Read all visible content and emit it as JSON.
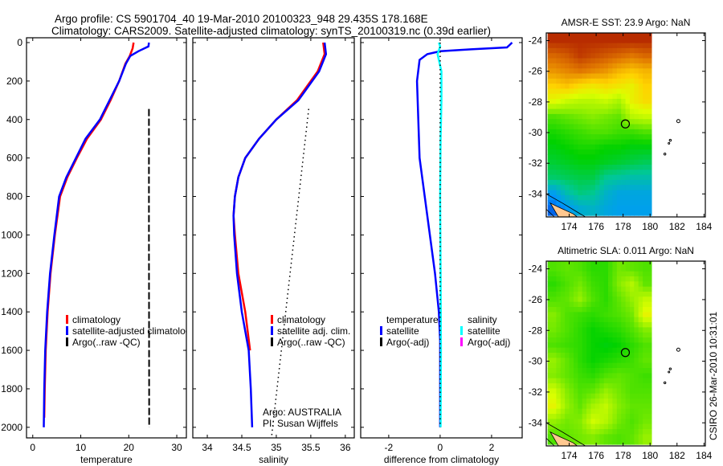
{
  "title": {
    "line1": "Argo profile: CS 5901704_40 19-Mar-2010 20100323_948 29.435S 178.168E",
    "line2": "Climatology: CARS2009. Satellite-adjusted climatology: synTS_20100319.nc (0.39d earlier)"
  },
  "footer_stamp": "CSIRO 26-Mar-2010 10:31:01",
  "colors": {
    "climatology": "#ff0000",
    "satellite": "#0000ff",
    "argo": "#000000",
    "sal_satellite": "#00ffff",
    "sal_argo": "#ff00ff"
  },
  "chart_data": [
    {
      "type": "line",
      "id": "temperature",
      "xlabel": "temperature",
      "ylabel": "",
      "xlim": [
        -1.3,
        32
      ],
      "ylim": [
        2055,
        -25
      ],
      "xticks": [
        "0",
        "10",
        "20",
        "30"
      ],
      "xtick_values": [
        0,
        10,
        20,
        30
      ],
      "yticks": [
        "0",
        "200",
        "400",
        "600",
        "800",
        "1000",
        "1200",
        "1400",
        "1600",
        "1800",
        "2000"
      ],
      "ytick_values": [
        0,
        200,
        400,
        600,
        800,
        1000,
        1200,
        1400,
        1600,
        1800,
        2000
      ],
      "legend": [
        "climatology",
        "satellite-adjusted climatology",
        "Argo(..raw -QC)"
      ],
      "series": [
        {
          "name": "climatology",
          "color": "#ff0000",
          "style": "solid",
          "points": [
            [
              21,
              0
            ],
            [
              20.8,
              30
            ],
            [
              20.2,
              70
            ],
            [
              19.3,
              110
            ],
            [
              18,
              200
            ],
            [
              16.2,
              300
            ],
            [
              14.2,
              400
            ],
            [
              11.3,
              500
            ],
            [
              9.2,
              600
            ],
            [
              7.2,
              700
            ],
            [
              5.7,
              800
            ],
            [
              4.6,
              1000
            ],
            [
              3.7,
              1200
            ],
            [
              3.1,
              1400
            ],
            [
              2.7,
              1600
            ],
            [
              2.5,
              1800
            ],
            [
              2.4,
              1950
            ]
          ]
        },
        {
          "name": "satellite-adjusted climatology",
          "color": "#0000ff",
          "style": "solid",
          "points": [
            [
              24.2,
              0
            ],
            [
              24.1,
              20
            ],
            [
              22,
              45
            ],
            [
              20.3,
              70
            ],
            [
              19.4,
              110
            ],
            [
              18,
              200
            ],
            [
              16,
              300
            ],
            [
              14,
              400
            ],
            [
              11,
              500
            ],
            [
              9,
              600
            ],
            [
              7,
              700
            ],
            [
              5.5,
              800
            ],
            [
              4.5,
              1000
            ],
            [
              3.6,
              1200
            ],
            [
              3,
              1400
            ],
            [
              2.6,
              1600
            ],
            [
              2.4,
              1800
            ],
            [
              2.3,
              2000
            ]
          ]
        },
        {
          "name": "Argo(..raw -QC)",
          "color": "#000000",
          "style": "dashed",
          "points": [
            [
              24.2,
              345
            ],
            [
              24.2,
              1000
            ],
            [
              24.25,
              2000
            ]
          ]
        }
      ]
    },
    {
      "type": "line",
      "id": "salinity",
      "xlabel": "salinity",
      "xlim": [
        33.79,
        36.13
      ],
      "ylim": [
        2055,
        -25
      ],
      "xticks": [
        "34",
        "34.5",
        "35",
        "35.5",
        "36"
      ],
      "xtick_values": [
        34,
        34.5,
        35,
        35.5,
        36
      ],
      "legend": [
        "climatology",
        "satellite adj. clim.",
        "Argo(..raw -QC)"
      ],
      "annotation": [
        "Argo: AUSTRALIA",
        "PI: Susan Wijffels"
      ],
      "series": [
        {
          "name": "climatology",
          "color": "#ff0000",
          "style": "solid",
          "points": [
            [
              35.68,
              0
            ],
            [
              35.7,
              60
            ],
            [
              35.6,
              150
            ],
            [
              35.3,
              300
            ],
            [
              35.0,
              400
            ],
            [
              34.75,
              500
            ],
            [
              34.55,
              600
            ],
            [
              34.45,
              700
            ],
            [
              34.4,
              800
            ],
            [
              34.38,
              900
            ],
            [
              34.4,
              1000
            ],
            [
              34.45,
              1200
            ],
            [
              34.55,
              1400
            ],
            [
              34.62,
              1600
            ]
          ]
        },
        {
          "name": "satellite adj. clim.",
          "color": "#0000ff",
          "style": "solid",
          "points": [
            [
              35.7,
              0
            ],
            [
              35.72,
              60
            ],
            [
              35.62,
              150
            ],
            [
              35.32,
              300
            ],
            [
              35.0,
              400
            ],
            [
              34.75,
              500
            ],
            [
              34.55,
              600
            ],
            [
              34.45,
              700
            ],
            [
              34.4,
              800
            ],
            [
              34.38,
              900
            ],
            [
              34.39,
              1000
            ],
            [
              34.43,
              1200
            ],
            [
              34.5,
              1400
            ],
            [
              34.6,
              1600
            ],
            [
              34.63,
              1800
            ],
            [
              34.65,
              2000
            ]
          ]
        },
        {
          "name": "Argo(..raw -QC)",
          "color": "#000000",
          "style": "dotted",
          "points": [
            [
              35.47,
              345
            ],
            [
              34.93,
              2055
            ]
          ]
        }
      ]
    },
    {
      "type": "line",
      "id": "difference",
      "xlabel": "difference from climatology",
      "xlim": [
        -3.09,
        3.19
      ],
      "ylim": [
        2055,
        -25
      ],
      "xticks": [
        "-2",
        "0",
        "2"
      ],
      "xtick_values": [
        -2,
        0,
        2
      ],
      "legend_temperature": {
        "title": "temperature",
        "items": [
          "satellite",
          "Argo(-adj)"
        ]
      },
      "legend_salinity": {
        "title": "salinity",
        "items": [
          "satellite",
          "Argo(-adj)"
        ]
      },
      "series": [
        {
          "name": "temperature satellite",
          "color": "#0000ff",
          "style": "solid",
          "points": [
            [
              2.8,
              0
            ],
            [
              2.6,
              25
            ],
            [
              1.2,
              35
            ],
            [
              0,
              45
            ],
            [
              -0.5,
              60
            ],
            [
              -0.8,
              90
            ],
            [
              -0.9,
              200
            ],
            [
              -0.85,
              400
            ],
            [
              -0.8,
              600
            ],
            [
              -0.6,
              800
            ],
            [
              -0.4,
              1000
            ],
            [
              -0.2,
              1200
            ],
            [
              -0.05,
              1400
            ],
            [
              0,
              1550
            ],
            [
              0,
              2000
            ]
          ]
        },
        {
          "name": "salinity satellite",
          "color": "#00ffff",
          "style": "solid",
          "points": [
            [
              -0.05,
              0
            ],
            [
              0,
              20
            ],
            [
              -0.1,
              60
            ],
            [
              0.05,
              150
            ],
            [
              0.05,
              300
            ],
            [
              0.02,
              500
            ],
            [
              0,
              800
            ],
            [
              0.02,
              1200
            ],
            [
              0.03,
              1600
            ],
            [
              0.02,
              2000
            ]
          ]
        },
        {
          "name": "zero reference",
          "color": "#000000",
          "style": "dotted",
          "points": [
            [
              0,
              0
            ],
            [
              0,
              2000
            ]
          ]
        }
      ]
    },
    {
      "type": "heatmap",
      "id": "sst_map",
      "title": "AMSR-E SST: 23.9 Argo: NaN",
      "xlim": [
        172.3,
        184.1
      ],
      "ylim": [
        -35.5,
        -23.5
      ],
      "xticks": [
        "174",
        "176",
        "178",
        "180",
        "182",
        "184"
      ],
      "xtick_values": [
        174,
        176,
        178,
        180,
        182,
        184
      ],
      "yticks": [
        "-24",
        "-26",
        "-28",
        "-30",
        "-32",
        "-34"
      ],
      "ytick_values": [
        -24,
        -26,
        -28,
        -30,
        -32,
        -34
      ],
      "data_lon": [
        172.4,
        180.1
      ],
      "data_lat": [
        -23.5,
        -35.4
      ],
      "crange": [
        20.5,
        26.3
      ],
      "argo_position": [
        178.168,
        -29.435
      ],
      "grid": [
        [
          26,
          26,
          26,
          26,
          26,
          26,
          26,
          26
        ],
        [
          25.6,
          25.7,
          25.9,
          25.8,
          25.7,
          25.6,
          25.5,
          25.6
        ],
        [
          25.3,
          25.4,
          25.5,
          25.4,
          25.3,
          25.1,
          25,
          25.1
        ],
        [
          24.9,
          25,
          24.8,
          24.7,
          24.8,
          24.7,
          24.6,
          24.9
        ],
        [
          24.5,
          24.3,
          24.2,
          24.2,
          24.3,
          24.1,
          24.6,
          24.8
        ],
        [
          23.6,
          23.7,
          23.8,
          23.9,
          23.8,
          23.7,
          24.2,
          24.3
        ],
        [
          23.3,
          23.4,
          23.5,
          23.6,
          23.6,
          23.5,
          23.5,
          23.6
        ],
        [
          23.1,
          23.2,
          23.3,
          23.3,
          23.2,
          23.2,
          23.1,
          23.1
        ],
        [
          22.9,
          23,
          23.1,
          23.1,
          23,
          22.9,
          22.8,
          22.7
        ],
        [
          22.6,
          22.7,
          22.8,
          22.8,
          22.4,
          22.3,
          22.2,
          22.2
        ],
        [
          21.7,
          22.2,
          22.5,
          22.4,
          22.0,
          21.8,
          21.8,
          21.8
        ],
        [
          21.2,
          21.6,
          21.9,
          22.0,
          21.8,
          21.7,
          21.7,
          21.7
        ]
      ]
    },
    {
      "type": "heatmap",
      "id": "sla_map",
      "title": "Altimetric SLA: 0.011 Argo: NaN",
      "xlim": [
        172.3,
        184.1
      ],
      "ylim": [
        -35.5,
        -23.5
      ],
      "xticks": [
        "174",
        "176",
        "178",
        "180",
        "182",
        "184"
      ],
      "xtick_values": [
        174,
        176,
        178,
        180,
        182,
        184
      ],
      "yticks": [
        "-24",
        "-26",
        "-28",
        "-30",
        "-32",
        "-34"
      ],
      "ytick_values": [
        -24,
        -26,
        -28,
        -30,
        -32,
        -34
      ],
      "data_lon": [
        172.4,
        180.1
      ],
      "data_lat": [
        -23.5,
        -35.4
      ],
      "crange": [
        -0.3,
        0.3
      ],
      "argo_position": [
        178.168,
        -29.435
      ],
      "grid": [
        [
          0.02,
          0.03,
          0.02,
          0.0,
          0.0,
          0.04,
          0.03,
          0.02
        ],
        [
          0.0,
          0.02,
          0.04,
          0.01,
          0.0,
          0.05,
          0.08,
          0.03
        ],
        [
          0.02,
          0.03,
          0.06,
          0.02,
          0.0,
          0.03,
          0.06,
          0.09
        ],
        [
          0.05,
          0.02,
          0.01,
          0.0,
          0.01,
          0.02,
          0.04,
          0.12
        ],
        [
          0.04,
          0.02,
          0.0,
          -0.02,
          -0.01,
          0.0,
          0.02,
          0.05
        ],
        [
          0.02,
          0.01,
          0.0,
          -0.02,
          -0.03,
          -0.02,
          0.0,
          0.02
        ],
        [
          0.06,
          0.03,
          0.0,
          -0.02,
          -0.01,
          0.0,
          0.01,
          0.03
        ],
        [
          0.05,
          0.03,
          0.01,
          0.0,
          0.02,
          0.03,
          0.02,
          0.01
        ],
        [
          0.1,
          0.05,
          0.02,
          0.03,
          0.06,
          0.04,
          0.02,
          0.02
        ],
        [
          0.12,
          0.06,
          0.03,
          0.07,
          0.09,
          0.05,
          0.03,
          0.03
        ],
        [
          0.06,
          0.04,
          0.05,
          0.1,
          0.08,
          0.04,
          0.02,
          0.04
        ],
        [
          0.02,
          0.03,
          0.04,
          0.05,
          0.03,
          0.02,
          0.03,
          0.06
        ]
      ]
    }
  ]
}
